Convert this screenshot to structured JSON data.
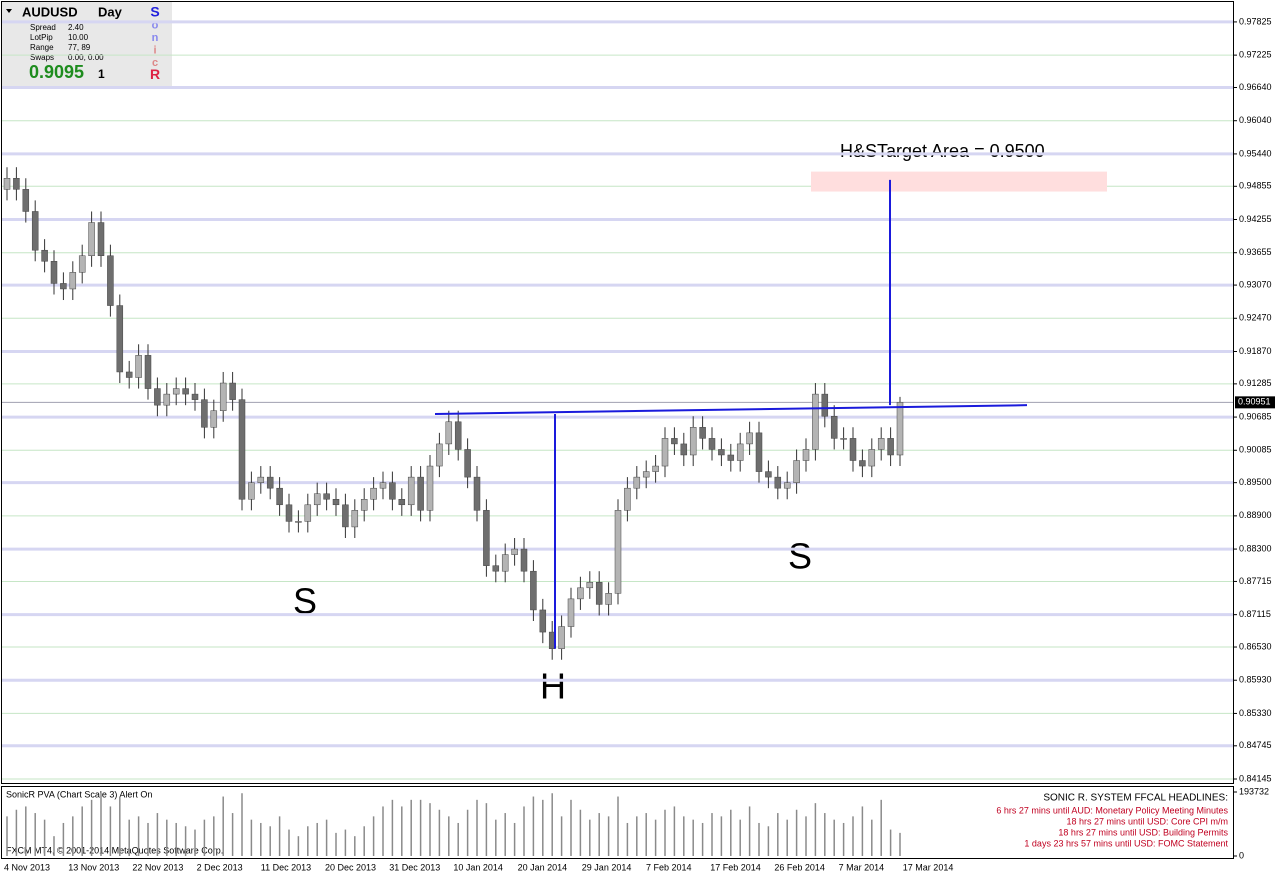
{
  "chart_data": {
    "type": "candlestick",
    "symbol": "AUDUSD",
    "timeframe": "Day",
    "info": {
      "labels": [
        "Spread",
        "LotPip",
        "Range",
        "Swaps"
      ],
      "values": [
        "2.40",
        "10.00",
        "77, 89",
        "0.00, 0.00"
      ],
      "price": "0.9095",
      "suffix": "1",
      "brand": [
        "S",
        "o",
        "n",
        "i",
        "c",
        "R"
      ]
    },
    "ylim": [
      0.84073,
      0.98185
    ],
    "yticks": [
      0.97825,
      0.97225,
      {
        "value": 0.9664,
        "label": "0.96640"
      },
      {
        "value": 0.9604,
        "label": "0.96040"
      },
      {
        "value": 0.9544,
        "label": "0.95440"
      },
      0.94855,
      0.94255,
      0.93655,
      {
        "value": 0.9307,
        "label": "0.93070"
      },
      {
        "value": 0.9247,
        "label": "0.92470"
      },
      {
        "value": 0.9187,
        "label": "0.91870"
      },
      0.91285,
      0.90685,
      0.90085,
      {
        "value": 0.895,
        "label": "0.89500"
      },
      {
        "value": 0.889,
        "label": "0.88900"
      },
      {
        "value": 0.883,
        "label": "0.88300"
      },
      0.87715,
      0.87115,
      {
        "value": 0.8653,
        "label": "0.86530"
      },
      {
        "value": 0.8593,
        "label": "0.85930"
      },
      {
        "value": 0.8533,
        "label": "0.85330"
      },
      0.84745,
      0.84145
    ],
    "last_price": 0.90951,
    "date_labels": [
      "4 Nov 2013",
      "13 Nov 2013",
      "22 Nov 2013",
      "2 Dec 2013",
      "11 Dec 2013",
      "20 Dec 2013",
      "31 Dec 2013",
      "10 Jan 2014",
      "20 Jan 2014",
      "29 Jan 2014",
      "7 Feb 2014",
      "17 Feb 2014",
      "26 Feb 2014",
      "7 Mar 2014",
      "17 Mar 2014"
    ],
    "candles": [
      [
        0.948,
        0.952,
        0.946,
        0.95
      ],
      [
        0.95,
        0.952,
        0.946,
        0.948
      ],
      [
        0.948,
        0.95,
        0.942,
        0.944
      ],
      [
        0.944,
        0.946,
        0.935,
        0.937
      ],
      [
        0.937,
        0.939,
        0.933,
        0.935
      ],
      [
        0.935,
        0.937,
        0.929,
        0.931
      ],
      [
        0.931,
        0.933,
        0.928,
        0.93
      ],
      [
        0.93,
        0.935,
        0.928,
        0.933
      ],
      [
        0.933,
        0.938,
        0.931,
        0.936
      ],
      [
        0.936,
        0.944,
        0.934,
        0.942
      ],
      [
        0.942,
        0.944,
        0.934,
        0.936
      ],
      [
        0.936,
        0.938,
        0.925,
        0.927
      ],
      [
        0.927,
        0.929,
        0.913,
        0.915
      ],
      [
        0.915,
        0.917,
        0.912,
        0.914
      ],
      [
        0.914,
        0.92,
        0.912,
        0.918
      ],
      [
        0.918,
        0.92,
        0.91,
        0.912
      ],
      [
        0.912,
        0.914,
        0.907,
        0.909
      ],
      [
        0.909,
        0.913,
        0.907,
        0.911
      ],
      [
        0.911,
        0.914,
        0.909,
        0.912
      ],
      [
        0.912,
        0.914,
        0.909,
        0.911
      ],
      [
        0.911,
        0.913,
        0.908,
        0.91
      ],
      [
        0.91,
        0.912,
        0.903,
        0.905
      ],
      [
        0.905,
        0.91,
        0.903,
        0.908
      ],
      [
        0.908,
        0.915,
        0.906,
        0.913
      ],
      [
        0.913,
        0.915,
        0.908,
        0.91
      ],
      [
        0.91,
        0.912,
        0.89,
        0.892
      ],
      [
        0.892,
        0.897,
        0.89,
        0.895
      ],
      [
        0.895,
        0.898,
        0.893,
        0.896
      ],
      [
        0.896,
        0.898,
        0.892,
        0.894
      ],
      [
        0.894,
        0.896,
        0.889,
        0.891
      ],
      [
        0.891,
        0.893,
        0.886,
        0.888
      ],
      [
        0.888,
        0.89,
        0.886,
        0.888
      ],
      [
        0.888,
        0.893,
        0.886,
        0.891
      ],
      [
        0.891,
        0.895,
        0.889,
        0.893
      ],
      [
        0.893,
        0.895,
        0.89,
        0.892
      ],
      [
        0.892,
        0.894,
        0.889,
        0.891
      ],
      [
        0.891,
        0.893,
        0.885,
        0.887
      ],
      [
        0.887,
        0.892,
        0.885,
        0.89
      ],
      [
        0.89,
        0.894,
        0.888,
        0.892
      ],
      [
        0.892,
        0.896,
        0.89,
        0.894
      ],
      [
        0.894,
        0.897,
        0.892,
        0.895
      ],
      [
        0.895,
        0.897,
        0.89,
        0.892
      ],
      [
        0.892,
        0.894,
        0.889,
        0.891
      ],
      [
        0.891,
        0.898,
        0.889,
        0.896
      ],
      [
        0.896,
        0.898,
        0.888,
        0.89
      ],
      [
        0.89,
        0.9,
        0.888,
        0.898
      ],
      [
        0.898,
        0.904,
        0.896,
        0.902
      ],
      [
        0.902,
        0.908,
        0.9,
        0.906
      ],
      [
        0.906,
        0.908,
        0.899,
        0.901
      ],
      [
        0.901,
        0.903,
        0.894,
        0.896
      ],
      [
        0.896,
        0.898,
        0.888,
        0.89
      ],
      [
        0.89,
        0.892,
        0.878,
        0.88
      ],
      [
        0.88,
        0.882,
        0.877,
        0.879
      ],
      [
        0.879,
        0.884,
        0.877,
        0.882
      ],
      [
        0.882,
        0.885,
        0.88,
        0.883
      ],
      [
        0.883,
        0.885,
        0.877,
        0.879
      ],
      [
        0.879,
        0.881,
        0.87,
        0.872
      ],
      [
        0.872,
        0.874,
        0.866,
        0.868
      ],
      [
        0.868,
        0.87,
        0.863,
        0.865
      ],
      [
        0.865,
        0.871,
        0.863,
        0.869
      ],
      [
        0.869,
        0.876,
        0.867,
        0.874
      ],
      [
        0.874,
        0.878,
        0.872,
        0.876
      ],
      [
        0.876,
        0.879,
        0.874,
        0.877
      ],
      [
        0.877,
        0.879,
        0.871,
        0.873
      ],
      [
        0.873,
        0.877,
        0.871,
        0.875
      ],
      [
        0.875,
        0.892,
        0.873,
        0.89
      ],
      [
        0.89,
        0.896,
        0.888,
        0.894
      ],
      [
        0.894,
        0.898,
        0.892,
        0.896
      ],
      [
        0.896,
        0.899,
        0.894,
        0.897
      ],
      [
        0.897,
        0.9,
        0.895,
        0.898
      ],
      [
        0.898,
        0.905,
        0.896,
        0.903
      ],
      [
        0.903,
        0.905,
        0.9,
        0.902
      ],
      [
        0.902,
        0.904,
        0.898,
        0.9
      ],
      [
        0.9,
        0.907,
        0.898,
        0.905
      ],
      [
        0.905,
        0.907,
        0.901,
        0.903
      ],
      [
        0.903,
        0.905,
        0.899,
        0.901
      ],
      [
        0.901,
        0.903,
        0.898,
        0.9
      ],
      [
        0.9,
        0.902,
        0.897,
        0.899
      ],
      [
        0.899,
        0.904,
        0.897,
        0.902
      ],
      [
        0.902,
        0.906,
        0.9,
        0.904
      ],
      [
        0.904,
        0.906,
        0.895,
        0.897
      ],
      [
        0.897,
        0.899,
        0.894,
        0.896
      ],
      [
        0.896,
        0.898,
        0.892,
        0.894
      ],
      [
        0.894,
        0.897,
        0.892,
        0.895
      ],
      [
        0.895,
        0.901,
        0.893,
        0.899
      ],
      [
        0.899,
        0.903,
        0.897,
        0.901
      ],
      [
        0.901,
        0.913,
        0.899,
        0.911
      ],
      [
        0.911,
        0.913,
        0.905,
        0.907
      ],
      [
        0.907,
        0.909,
        0.901,
        0.903
      ],
      [
        0.903,
        0.905,
        0.901,
        0.903
      ],
      [
        0.903,
        0.905,
        0.897,
        0.899
      ],
      [
        0.899,
        0.901,
        0.896,
        0.898
      ],
      [
        0.898,
        0.903,
        0.896,
        0.901
      ],
      [
        0.901,
        0.905,
        0.899,
        0.903
      ],
      [
        0.903,
        0.905,
        0.898,
        0.9
      ],
      [
        0.9,
        0.9105,
        0.898,
        0.9095
      ]
    ],
    "up_color": "#b4b4b4",
    "down_color": "#6e6e6e",
    "annotations": {
      "left_shoulder": "S",
      "head": "H",
      "right_shoulder": "S",
      "target_text": "H&STarget Area = 0.9500",
      "neckline": [
        0.9074,
        0.909
      ],
      "head_low": 0.865,
      "target": 0.9497,
      "target_zone": [
        0.9476,
        0.9512
      ]
    },
    "volume_panel": {
      "title": "SonicR PVA  (Chart Scale 3)    Alert On",
      "ylim": [
        0,
        193732
      ],
      "yticks": [
        193732,
        0
      ],
      "color": "#8a8a8a",
      "values": [
        120000,
        140000,
        150000,
        130000,
        110000,
        60000,
        100000,
        120000,
        150000,
        170000,
        190000,
        150000,
        180000,
        110000,
        120000,
        100000,
        130000,
        110000,
        100000,
        90000,
        80000,
        110000,
        120000,
        180000,
        130000,
        190000,
        110000,
        100000,
        90000,
        120000,
        80000,
        60000,
        90000,
        100000,
        110000,
        70000,
        80000,
        60000,
        90000,
        120000,
        150000,
        170000,
        150000,
        170000,
        170000,
        160000,
        140000,
        120000,
        100000,
        140000,
        170000,
        160000,
        110000,
        130000,
        100000,
        150000,
        180000,
        170000,
        190000,
        120000,
        170000,
        140000,
        110000,
        130000,
        120000,
        180000,
        100000,
        120000,
        130000,
        110000,
        140000,
        150000,
        120000,
        110000,
        100000,
        130000,
        120000,
        140000,
        110000,
        150000,
        100000,
        90000,
        130000,
        110000,
        140000,
        120000,
        160000,
        130000,
        110000,
        100000,
        120000,
        150000,
        110000,
        170000,
        80000,
        70000
      ]
    },
    "copyright": "FXCM MT4, © 2001-2014 MetaQuotes Software Corp.",
    "headlines": {
      "title": "SONIC R. SYSTEM  FFCAL HEADLINES:",
      "items": [
        "6 hrs 27 mins until AUD: Monetary Policy Meeting Minutes",
        "18 hrs 27 mins until USD: Core CPI m/m",
        "18 hrs 27 mins until USD: Building Permits",
        "1 days 23 hrs 57 mins until USD: FOMC Statement"
      ]
    }
  }
}
